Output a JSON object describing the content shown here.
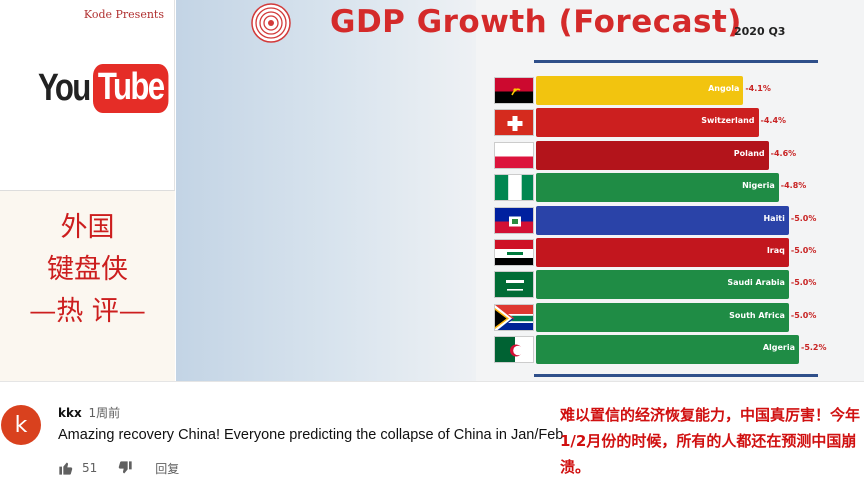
{
  "sidebar": {
    "channel": "Kode Presents",
    "logo_you": "You",
    "logo_tube": "Tube",
    "headline_line1": "外国",
    "headline_line2": "键盘侠",
    "headline_line3": "—热 评—"
  },
  "chart": {
    "title": "GDP Growth (Forecast)",
    "period": "2020 Q3",
    "emblem_icon": "concentric-circles-emblem-icon"
  },
  "chart_data": {
    "type": "bar",
    "orientation": "horizontal",
    "title": "GDP Growth (Forecast)",
    "subtitle": "2020 Q3",
    "categories": [
      "Angola",
      "Switzerland",
      "Poland",
      "Nigeria",
      "Haiti",
      "Iraq",
      "Saudi Arabia",
      "South Africa",
      "Algeria"
    ],
    "values": [
      -4.1,
      -4.4,
      -4.6,
      -4.8,
      -5.0,
      -5.0,
      -5.0,
      -5.0,
      -5.2
    ],
    "value_labels": [
      "-4.1%",
      "-4.4%",
      "-4.6%",
      "-4.8%",
      "-5.0%",
      "-5.0%",
      "-5.0%",
      "-5.0%",
      "-5.2%"
    ],
    "colors": [
      "#f2c40f",
      "#cc1f1f",
      "#b3141b",
      "#1f8c45",
      "#2a43a8",
      "#c2161e",
      "#1f8c45",
      "#1f8c45",
      "#1f8c45"
    ],
    "flags": [
      "angola-flag-icon",
      "switzerland-flag-icon",
      "poland-flag-icon",
      "nigeria-flag-icon",
      "haiti-flag-icon",
      "iraq-flag-icon",
      "saudi-arabia-flag-icon",
      "south-africa-flag-icon",
      "algeria-flag-icon"
    ],
    "xlim": [
      0,
      -5.2
    ]
  },
  "comment": {
    "avatar_letter": "k",
    "user": "kkx",
    "time_ago": "1周前",
    "text": "Amazing recovery China! Everyone predicting the collapse of China in Jan/Feb",
    "likes": "51",
    "reply_label": "回复",
    "translation": "难以置信的经济恢复能力，中国真厉害！今年1/2月份的时候，所有的人都还在预测中国崩溃。",
    "like_icon": "thumbs-up-icon",
    "dislike_icon": "thumbs-down-icon"
  }
}
